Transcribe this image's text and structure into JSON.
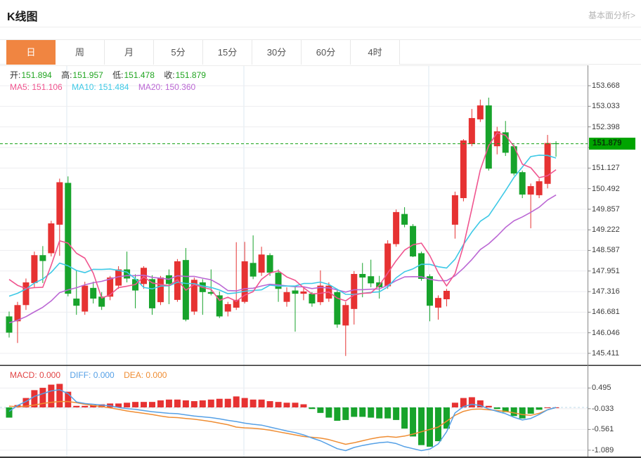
{
  "header": {
    "title": "K线图",
    "analysis_link": "基本面分析>"
  },
  "tabs": {
    "items": [
      "日",
      "周",
      "月",
      "5分",
      "15分",
      "30分",
      "60分",
      "4时"
    ],
    "active_index": 0
  },
  "ohlc": {
    "open_label": "开:",
    "open": "151.894",
    "high_label": "高:",
    "high": "151.957",
    "low_label": "低:",
    "low": "151.478",
    "close_label": "收:",
    "close": "151.879"
  },
  "ma_legend": {
    "ma5": "MA5: 151.106",
    "ma10": "MA10: 151.484",
    "ma20": "MA20: 150.360"
  },
  "macd_legend": {
    "macd": "MACD: 0.000",
    "diff": "DIFF: 0.000",
    "dea": "DEA: 0.000"
  },
  "colors": {
    "up": "#e63232",
    "down": "#17a32b",
    "ma5": "#f0558f",
    "ma10": "#3ec9e6",
    "ma20": "#bb67d4",
    "diff_line": "#55a0e6",
    "dea_line": "#ef8d33",
    "badge_bg": "#00a400",
    "price_line": "#10a010",
    "grid": "#ededf0",
    "vline": "#dce8f2",
    "axis": "#888888",
    "tab_active": "#f08541",
    "macd_label": "#e14444",
    "ohlc_value": "#21a521",
    "zero_dash": "#bcd8ea",
    "divider": "#1f1f1f"
  },
  "chart_data": {
    "type": "candlestick+macd",
    "title": "K线图",
    "period_selected": "日",
    "current_price": 151.879,
    "price_ticks": [
      {
        "v": 153.668,
        "label": "153.668"
      },
      {
        "v": 153.033,
        "label": "153.033"
      },
      {
        "v": 152.398,
        "label": "152.398"
      },
      {
        "v": 151.763,
        "label": ""
      },
      {
        "v": 151.127,
        "label": "151.127"
      },
      {
        "v": 150.492,
        "label": "150.492"
      },
      {
        "v": 149.857,
        "label": "149.857"
      },
      {
        "v": 149.222,
        "label": "149.222"
      },
      {
        "v": 148.587,
        "label": "148.587"
      },
      {
        "v": 147.951,
        "label": "147.951"
      },
      {
        "v": 147.316,
        "label": "147.316"
      },
      {
        "v": 146.681,
        "label": "146.681"
      },
      {
        "v": 146.046,
        "label": "146.046"
      },
      {
        "v": 145.411,
        "label": "145.411"
      }
    ],
    "candles_ohlc": [
      [
        146.55,
        146.7,
        145.9,
        146.05
      ],
      [
        146.4,
        147.0,
        145.73,
        146.9
      ],
      [
        146.9,
        147.72,
        146.75,
        147.6
      ],
      [
        147.58,
        148.55,
        147.45,
        148.44
      ],
      [
        148.44,
        148.72,
        147.58,
        148.26
      ],
      [
        148.5,
        149.5,
        148.4,
        149.42
      ],
      [
        149.38,
        150.8,
        148.42,
        150.69
      ],
      [
        150.67,
        150.87,
        147.17,
        147.25
      ],
      [
        147.1,
        147.97,
        146.6,
        146.88
      ],
      [
        146.7,
        147.62,
        146.6,
        147.5
      ],
      [
        147.43,
        147.62,
        146.95,
        147.1
      ],
      [
        147.16,
        147.3,
        146.75,
        146.85
      ],
      [
        147.16,
        147.8,
        147.05,
        147.75
      ],
      [
        147.5,
        148.1,
        147.4,
        148.0
      ],
      [
        148.0,
        148.55,
        147.6,
        147.72
      ],
      [
        147.7,
        147.85,
        146.8,
        147.35
      ],
      [
        147.55,
        148.1,
        147.4,
        148.05
      ],
      [
        147.7,
        147.82,
        146.6,
        146.8
      ],
      [
        146.99,
        147.8,
        146.9,
        147.75
      ],
      [
        147.82,
        148.0,
        146.93,
        147.55
      ],
      [
        147.06,
        148.32,
        147.0,
        148.25
      ],
      [
        148.29,
        148.66,
        146.4,
        146.45
      ],
      [
        146.7,
        147.75,
        146.6,
        147.68
      ],
      [
        147.6,
        147.7,
        146.6,
        147.3
      ],
      [
        147.3,
        148.0,
        147.2,
        147.25
      ],
      [
        147.2,
        147.32,
        146.5,
        146.55
      ],
      [
        146.7,
        147.0,
        146.55,
        146.93
      ],
      [
        146.82,
        148.84,
        146.75,
        147.06
      ],
      [
        147.0,
        148.85,
        146.95,
        148.25
      ],
      [
        148.2,
        149.05,
        147.7,
        147.78
      ],
      [
        147.9,
        148.7,
        147.8,
        148.46
      ],
      [
        148.44,
        148.5,
        147.8,
        147.9
      ],
      [
        147.9,
        148.0,
        147.0,
        147.4
      ],
      [
        147.0,
        147.45,
        146.85,
        147.3
      ],
      [
        147.35,
        147.45,
        146.08,
        147.25
      ],
      [
        147.25,
        147.45,
        147.05,
        147.32
      ],
      [
        147.25,
        147.3,
        146.85,
        146.95
      ],
      [
        146.99,
        147.97,
        146.9,
        147.5
      ],
      [
        147.1,
        147.6,
        147.0,
        147.5
      ],
      [
        147.3,
        147.35,
        146.2,
        146.3
      ],
      [
        146.27,
        147.0,
        145.33,
        146.9
      ],
      [
        146.78,
        147.95,
        146.3,
        147.86
      ],
      [
        147.86,
        148.2,
        147.14,
        147.75
      ],
      [
        147.79,
        148.3,
        147.45,
        147.57
      ],
      [
        147.6,
        147.8,
        147.1,
        147.45
      ],
      [
        147.48,
        148.9,
        147.4,
        148.8
      ],
      [
        148.78,
        149.85,
        148.7,
        149.77
      ],
      [
        149.71,
        149.92,
        149.3,
        149.38
      ],
      [
        149.34,
        149.4,
        148.38,
        148.4
      ],
      [
        148.5,
        148.55,
        147.65,
        147.71
      ],
      [
        147.79,
        147.85,
        146.4,
        146.88
      ],
      [
        146.82,
        147.2,
        146.45,
        147.12
      ],
      [
        147.08,
        147.4,
        146.86,
        147.34
      ],
      [
        149.38,
        150.4,
        148.95,
        150.29
      ],
      [
        150.2,
        152.02,
        150.1,
        151.98
      ],
      [
        151.87,
        152.95,
        151.8,
        152.67
      ],
      [
        152.63,
        153.24,
        152.55,
        153.06
      ],
      [
        153.06,
        153.3,
        151.05,
        151.11
      ],
      [
        151.8,
        152.4,
        151.55,
        152.26
      ],
      [
        152.23,
        152.58,
        151.5,
        151.6
      ],
      [
        151.8,
        151.85,
        150.9,
        150.96
      ],
      [
        151.0,
        151.05,
        150.2,
        150.31
      ],
      [
        150.31,
        150.65,
        149.27,
        150.57
      ],
      [
        150.29,
        150.8,
        150.2,
        150.72
      ],
      [
        150.64,
        152.15,
        150.5,
        151.9
      ],
      [
        151.894,
        151.957,
        151.478,
        151.879
      ]
    ],
    "ma_periods": [
      5,
      10,
      20
    ],
    "ma_seed_closes": [
      145.3,
      145.4,
      145.5,
      145.4,
      145.5,
      145.6,
      145.5,
      145.6,
      145.7,
      145.8,
      146.0,
      146.3,
      146.6,
      147.0,
      147.4,
      147.8,
      148.1,
      148.3,
      148.2
    ],
    "macd": {
      "ticks": [
        {
          "v": 0.495,
          "label": "0.495"
        },
        {
          "v": -0.033,
          "label": "-0.033"
        },
        {
          "v": -0.561,
          "label": "-0.561"
        },
        {
          "v": -1.089,
          "label": "-1.089"
        }
      ],
      "diff": [
        -0.1,
        0.05,
        0.15,
        0.28,
        0.35,
        0.42,
        0.45,
        0.35,
        0.14,
        0.1,
        0.08,
        0.06,
        0.04,
        0.0,
        -0.03,
        -0.05,
        -0.08,
        -0.11,
        -0.13,
        -0.15,
        -0.16,
        -0.19,
        -0.22,
        -0.24,
        -0.26,
        -0.29,
        -0.33,
        -0.36,
        -0.4,
        -0.43,
        -0.45,
        -0.5,
        -0.55,
        -0.6,
        -0.64,
        -0.7,
        -0.78,
        -0.85,
        -0.95,
        -1.05,
        -1.1,
        -1.02,
        -0.97,
        -0.93,
        -0.9,
        -0.88,
        -0.92,
        -1.0,
        -1.05,
        -1.1,
        -1.06,
        -0.93,
        -0.62,
        -0.14,
        0.02,
        0.08,
        0.05,
        -0.04,
        -0.1,
        -0.16,
        -0.25,
        -0.32,
        -0.28,
        -0.18,
        -0.06,
        0.0
      ],
      "dea": [
        0.03,
        0.02,
        0.03,
        0.06,
        0.1,
        0.13,
        0.15,
        0.15,
        0.12,
        0.08,
        0.05,
        0.02,
        -0.01,
        -0.05,
        -0.09,
        -0.12,
        -0.15,
        -0.18,
        -0.22,
        -0.25,
        -0.26,
        -0.28,
        -0.3,
        -0.33,
        -0.36,
        -0.4,
        -0.44,
        -0.5,
        -0.52,
        -0.53,
        -0.55,
        -0.58,
        -0.62,
        -0.66,
        -0.7,
        -0.74,
        -0.76,
        -0.78,
        -0.82,
        -0.88,
        -0.94,
        -0.9,
        -0.85,
        -0.8,
        -0.76,
        -0.74,
        -0.76,
        -0.73,
        -0.68,
        -0.62,
        -0.56,
        -0.5,
        -0.35,
        -0.2,
        -0.1,
        -0.05,
        -0.04,
        -0.06,
        -0.08,
        -0.1,
        -0.14,
        -0.18,
        -0.2,
        -0.15,
        -0.06,
        0.0
      ]
    },
    "vgrid_x": [
      95,
      347,
      610
    ]
  }
}
